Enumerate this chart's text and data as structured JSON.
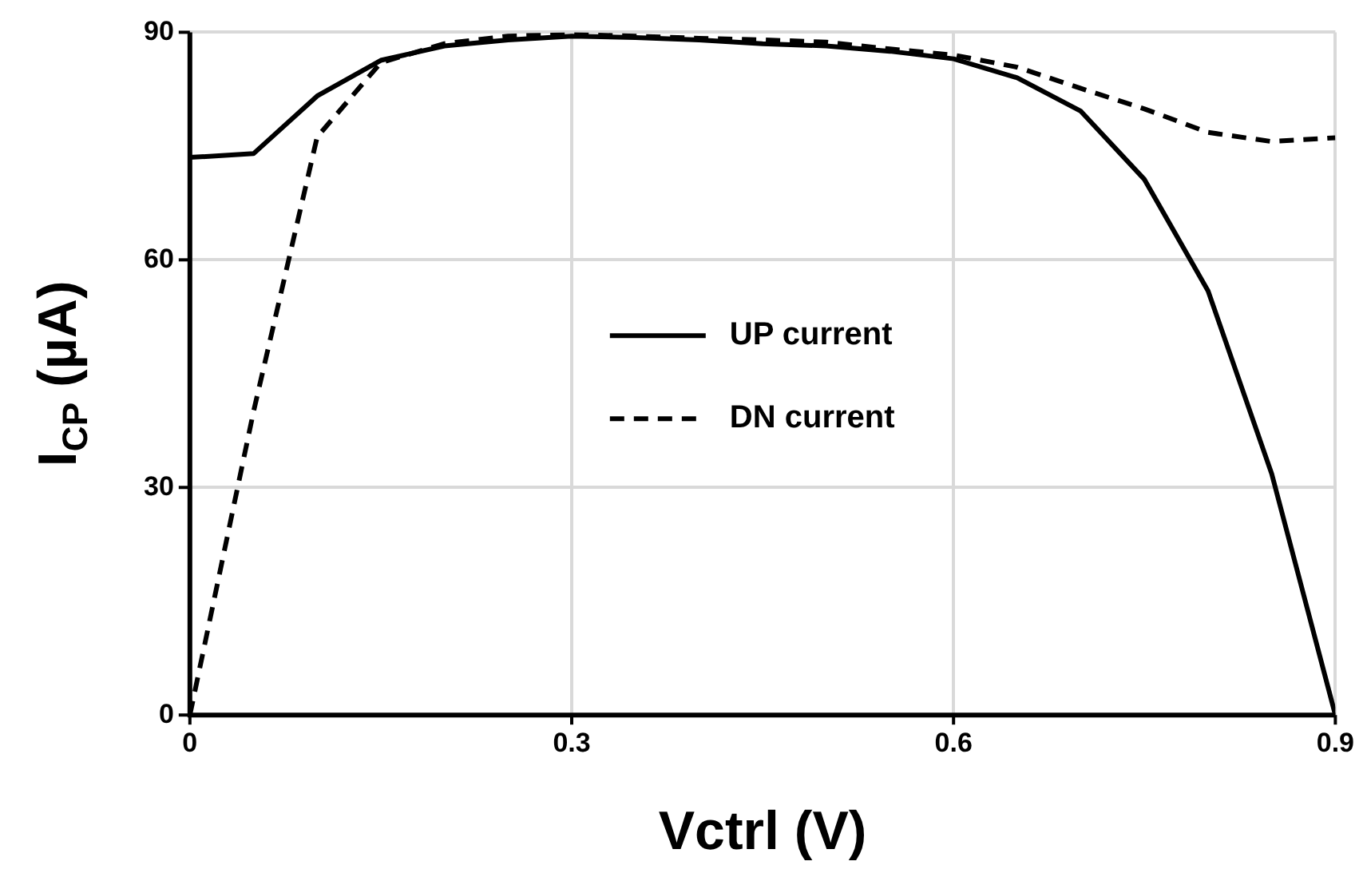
{
  "chart_data": {
    "type": "line",
    "xlabel": "Vctrl (V)",
    "ylabel": "I$_{CP}$ (µA)",
    "x": [
      0,
      0.05,
      0.1,
      0.15,
      0.2,
      0.25,
      0.3,
      0.35,
      0.4,
      0.45,
      0.5,
      0.55,
      0.6,
      0.65,
      0.7,
      0.75,
      0.8,
      0.85,
      0.9
    ],
    "series": [
      {
        "name": "UP current",
        "color": "#000000",
        "line_style": "solid",
        "values": [
          73.5,
          74,
          81.6,
          86.3,
          88.2,
          89,
          89.5,
          89.3,
          89,
          88.5,
          88.2,
          87.5,
          86.5,
          84,
          79.6,
          70.6,
          55.9,
          31.8,
          0
        ]
      },
      {
        "name": "DN current",
        "color": "#000000",
        "line_style": "dashed",
        "values": [
          0,
          40,
          76.2,
          86,
          88.5,
          89.5,
          89.7,
          89.5,
          89.2,
          89,
          88.7,
          87.8,
          87,
          85.4,
          82.6,
          79.9,
          76.8,
          75.6,
          76.1
        ]
      }
    ],
    "xlim": [
      0,
      0.9
    ],
    "xticks": [
      0,
      0.3,
      0.6,
      0.9
    ],
    "ylim": [
      0,
      90
    ],
    "yticks": [
      0,
      30,
      60,
      90
    ],
    "grid": true,
    "legend": "center",
    "marker": "none"
  }
}
